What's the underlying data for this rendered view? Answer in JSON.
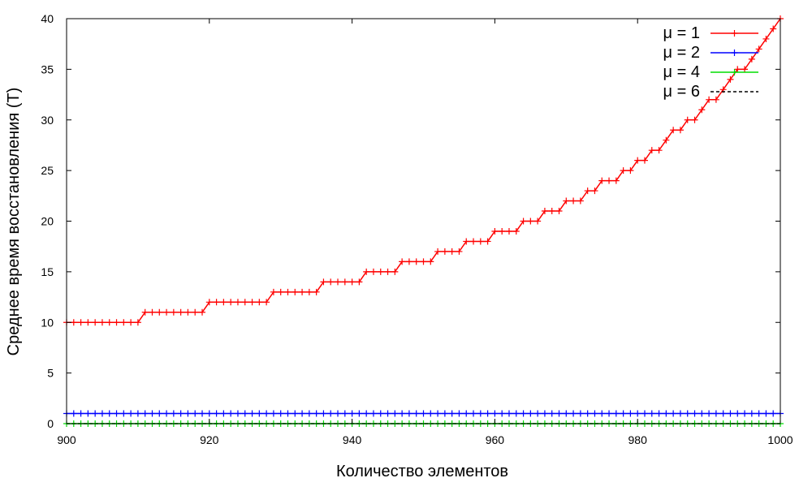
{
  "chart_data": {
    "type": "line",
    "title": "",
    "xlabel": "Количество элементов",
    "ylabel": "Среднее время восстановления (T)",
    "xlim": [
      900,
      1000
    ],
    "ylim": [
      0,
      40
    ],
    "x_ticks": [
      900,
      920,
      940,
      960,
      980,
      1000
    ],
    "y_ticks": [
      0,
      5,
      10,
      15,
      20,
      25,
      30,
      35,
      40
    ],
    "legend_position": "top-right",
    "grid": false,
    "series": [
      {
        "name": "μ = 1",
        "color": "#ff0000",
        "style": "solid",
        "marker": "plus",
        "x": [
          900,
          901,
          902,
          903,
          904,
          905,
          906,
          907,
          908,
          909,
          910,
          911,
          912,
          913,
          914,
          915,
          916,
          917,
          918,
          919,
          920,
          921,
          922,
          923,
          924,
          925,
          926,
          927,
          928,
          929,
          930,
          931,
          932,
          933,
          934,
          935,
          936,
          937,
          938,
          939,
          940,
          941,
          942,
          943,
          944,
          945,
          946,
          947,
          948,
          949,
          950,
          951,
          952,
          953,
          954,
          955,
          956,
          957,
          958,
          959,
          960,
          961,
          962,
          963,
          964,
          965,
          966,
          967,
          968,
          969,
          970,
          971,
          972,
          973,
          974,
          975,
          976,
          977,
          978,
          979,
          980,
          981,
          982,
          983,
          984,
          985,
          986,
          987,
          988,
          989,
          990,
          991,
          992,
          993,
          994,
          995,
          996,
          997,
          998,
          999,
          1000
        ],
        "y": [
          10,
          10,
          10,
          10,
          10,
          10,
          10,
          10,
          10,
          10,
          10,
          11,
          11,
          11,
          11,
          11,
          11,
          11,
          11,
          11,
          12,
          12,
          12,
          12,
          12,
          12,
          12,
          12,
          12,
          13,
          13,
          13,
          13,
          13,
          13,
          13,
          14,
          14,
          14,
          14,
          14,
          14,
          15,
          15,
          15,
          15,
          15,
          16,
          16,
          16,
          16,
          16,
          17,
          17,
          17,
          17,
          18,
          18,
          18,
          18,
          19,
          19,
          19,
          19,
          20,
          20,
          20,
          21,
          21,
          21,
          22,
          22,
          22,
          23,
          23,
          24,
          24,
          24,
          25,
          25,
          26,
          26,
          27,
          27,
          28,
          29,
          29,
          30,
          30,
          31,
          32,
          32,
          33,
          34,
          35,
          35,
          36,
          37,
          38,
          39,
          40
        ]
      },
      {
        "name": "μ = 2",
        "color": "#0000ff",
        "style": "solid",
        "marker": "plus",
        "constant": 1
      },
      {
        "name": "μ = 4",
        "color": "#00dd00",
        "style": "solid",
        "marker": "plus",
        "constant": 0
      },
      {
        "name": "μ = 6",
        "color": "#000000",
        "style": "dashed",
        "marker": "none",
        "constant": 0
      }
    ]
  }
}
